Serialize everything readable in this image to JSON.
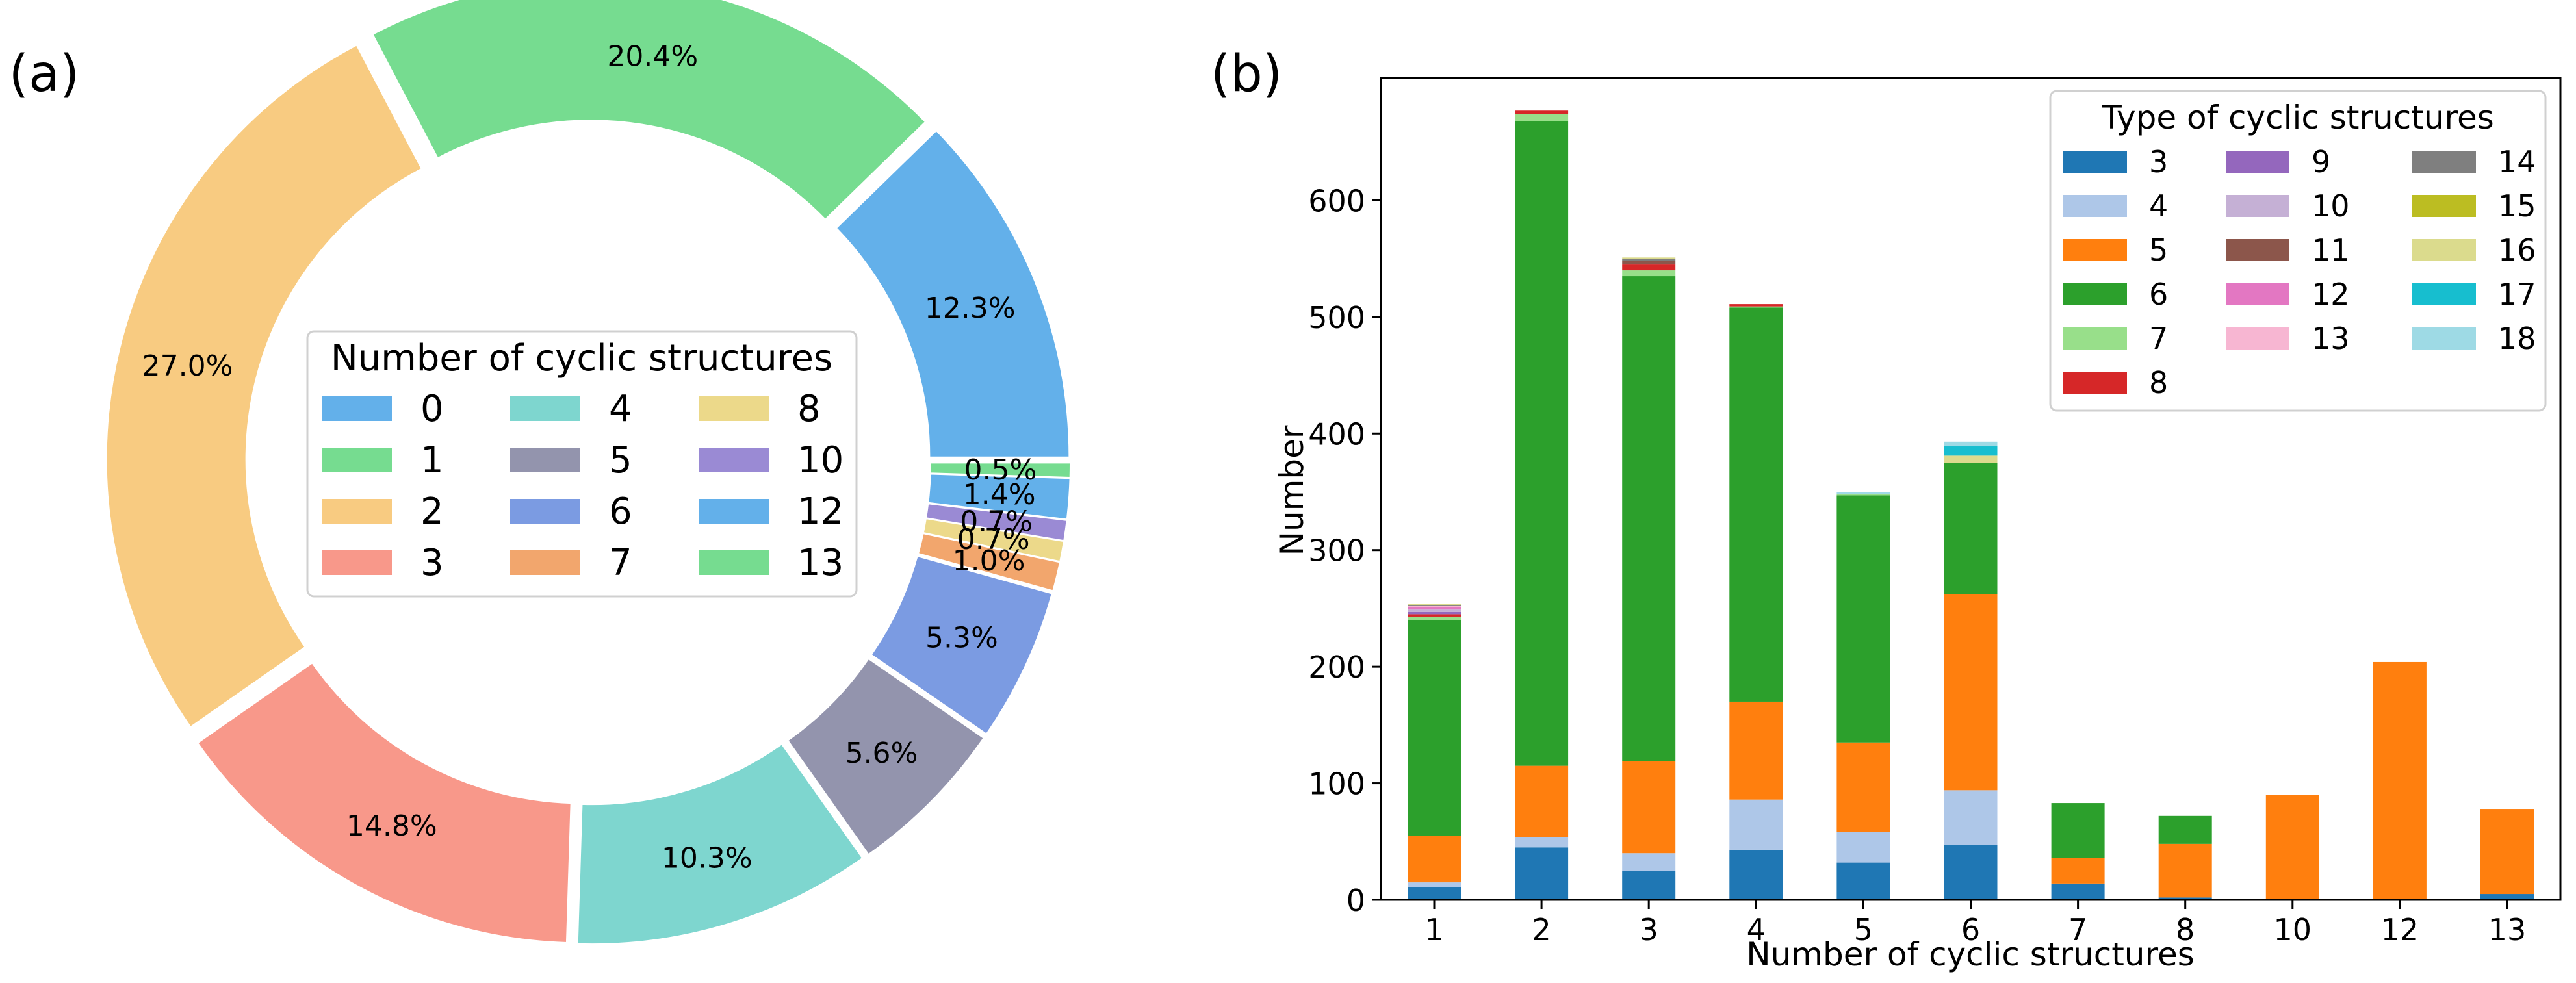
{
  "chart_data": [
    {
      "panel_label": "(a)",
      "type": "pie",
      "subtype": "donut",
      "values": [
        12.3,
        20.4,
        27.0,
        14.8,
        10.3,
        5.6,
        5.3,
        1.0,
        0.7,
        0.7,
        1.4,
        0.5
      ],
      "labels": [
        "12.3%",
        "20.4%",
        "27.0%",
        "14.8%",
        "10.3%",
        "5.6%",
        "5.3%",
        "1.0%",
        "0.7%",
        "0.7%",
        "1.4%",
        "0.5%"
      ],
      "slice_categories": [
        "0",
        "1",
        "2",
        "3",
        "4",
        "5",
        "6",
        "7",
        "8",
        "10",
        "12",
        "13"
      ],
      "colors": [
        "#63b0ea",
        "#76dc90",
        "#f8cb81",
        "#f8988a",
        "#7ed6cf",
        "#9394ad",
        "#7b9be2",
        "#f2a66d",
        "#ecd98a",
        "#9a8ad4",
        "#63b0ea",
        "#76dc90"
      ],
      "legend": {
        "title": "Number of cyclic structures",
        "position": "center",
        "entries": [
          "0",
          "1",
          "2",
          "3",
          "4",
          "5",
          "6",
          "7",
          "8",
          "10",
          "12",
          "13"
        ]
      }
    },
    {
      "panel_label": "(b)",
      "type": "bar",
      "stacked": true,
      "xlabel": "Number of cyclic structures",
      "ylabel": "Number",
      "categories": [
        "1",
        "2",
        "3",
        "4",
        "5",
        "6",
        "7",
        "8",
        "10",
        "12",
        "13"
      ],
      "ylim": [
        0,
        705
      ],
      "yticks": [
        0,
        100,
        200,
        300,
        400,
        500,
        600
      ],
      "series": [
        {
          "name": "3",
          "color": "#1f77b4",
          "values": [
            11,
            45,
            25,
            43,
            32,
            47,
            14,
            2,
            0,
            0,
            5
          ]
        },
        {
          "name": "4",
          "color": "#aec7e8",
          "values": [
            4,
            9,
            15,
            43,
            26,
            47,
            0,
            0,
            0,
            0,
            0
          ]
        },
        {
          "name": "5",
          "color": "#ff7f0e",
          "values": [
            40,
            61,
            79,
            84,
            77,
            168,
            22,
            46,
            90,
            204,
            73
          ]
        },
        {
          "name": "6",
          "color": "#2ca02c",
          "values": [
            185,
            553,
            416,
            338,
            212,
            113,
            47,
            24,
            0,
            0,
            0
          ]
        },
        {
          "name": "7",
          "color": "#98df8a",
          "values": [
            3,
            6,
            5,
            1,
            1,
            0,
            0,
            0,
            0,
            0,
            0
          ]
        },
        {
          "name": "8",
          "color": "#d62728",
          "values": [
            2,
            3,
            5,
            2,
            0,
            0,
            0,
            0,
            0,
            0,
            0
          ]
        },
        {
          "name": "9",
          "color": "#9467bd",
          "values": [
            2,
            0,
            0,
            0,
            0,
            0,
            0,
            0,
            0,
            0,
            0
          ]
        },
        {
          "name": "10",
          "color": "#c5b0d5",
          "values": [
            2,
            0,
            0,
            0,
            0,
            0,
            0,
            0,
            0,
            0,
            0
          ]
        },
        {
          "name": "11",
          "color": "#8c564b",
          "values": [
            0,
            0,
            3,
            0,
            0,
            0,
            0,
            0,
            0,
            0,
            0
          ]
        },
        {
          "name": "12",
          "color": "#e377c2",
          "values": [
            2,
            0,
            0,
            0,
            0,
            0,
            0,
            0,
            0,
            0,
            0
          ]
        },
        {
          "name": "13",
          "color": "#f7b6d2",
          "values": [
            1,
            0,
            0,
            0,
            0,
            0,
            0,
            0,
            0,
            0,
            0
          ]
        },
        {
          "name": "14",
          "color": "#7f7f7f",
          "values": [
            1,
            0,
            2,
            0,
            0,
            0,
            0,
            0,
            0,
            0,
            0
          ]
        },
        {
          "name": "15",
          "color": "#bcbd22",
          "values": [
            0,
            0,
            0,
            0,
            0,
            0,
            0,
            0,
            0,
            0,
            0
          ]
        },
        {
          "name": "16",
          "color": "#dbdb8d",
          "values": [
            1,
            0,
            1,
            0,
            0,
            6,
            0,
            0,
            0,
            0,
            0
          ]
        },
        {
          "name": "17",
          "color": "#17becf",
          "values": [
            0,
            0,
            0,
            0,
            0,
            8,
            0,
            0,
            0,
            0,
            0
          ]
        },
        {
          "name": "18",
          "color": "#9edae5",
          "values": [
            0,
            0,
            0,
            0,
            2,
            4,
            0,
            0,
            0,
            0,
            0
          ]
        }
      ],
      "legend": {
        "title": "Type of cyclic structures",
        "position": "upper right",
        "ncol": 3
      }
    }
  ]
}
